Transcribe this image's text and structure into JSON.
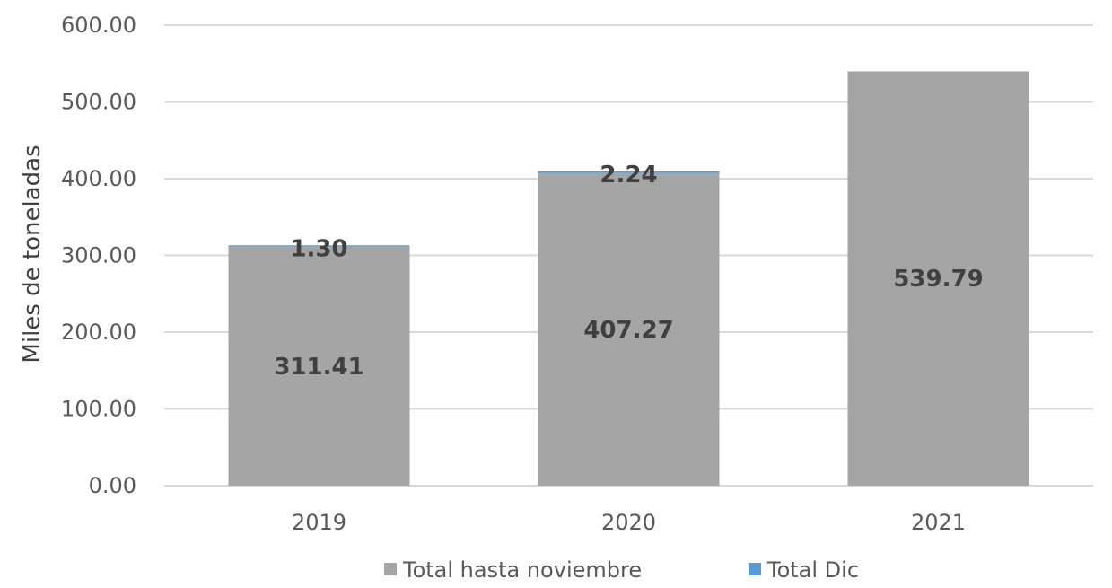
{
  "chart_data": {
    "type": "bar",
    "stacked": true,
    "categories": [
      "2019",
      "2020",
      "2021"
    ],
    "series": [
      {
        "name": "Total hasta noviembre",
        "values": [
          311.41,
          407.27,
          539.79
        ],
        "labels": [
          "311.41",
          "407.27",
          "539.79"
        ],
        "color": "#a5a5a5"
      },
      {
        "name": "Total Dic",
        "values": [
          1.3,
          2.24,
          null
        ],
        "labels": [
          "1.30",
          "2.24",
          ""
        ],
        "color": "#5b9bd5"
      }
    ],
    "title": "",
    "xlabel": "",
    "ylabel": "Miles de toneladas",
    "ylim": [
      0,
      600
    ],
    "yticks": [
      0,
      100,
      200,
      300,
      400,
      500,
      600
    ],
    "ytick_labels": [
      "0.00",
      "100.00",
      "200.00",
      "300.00",
      "400.00",
      "500.00",
      "600.00"
    ],
    "grid": true,
    "legend": "bottom"
  }
}
